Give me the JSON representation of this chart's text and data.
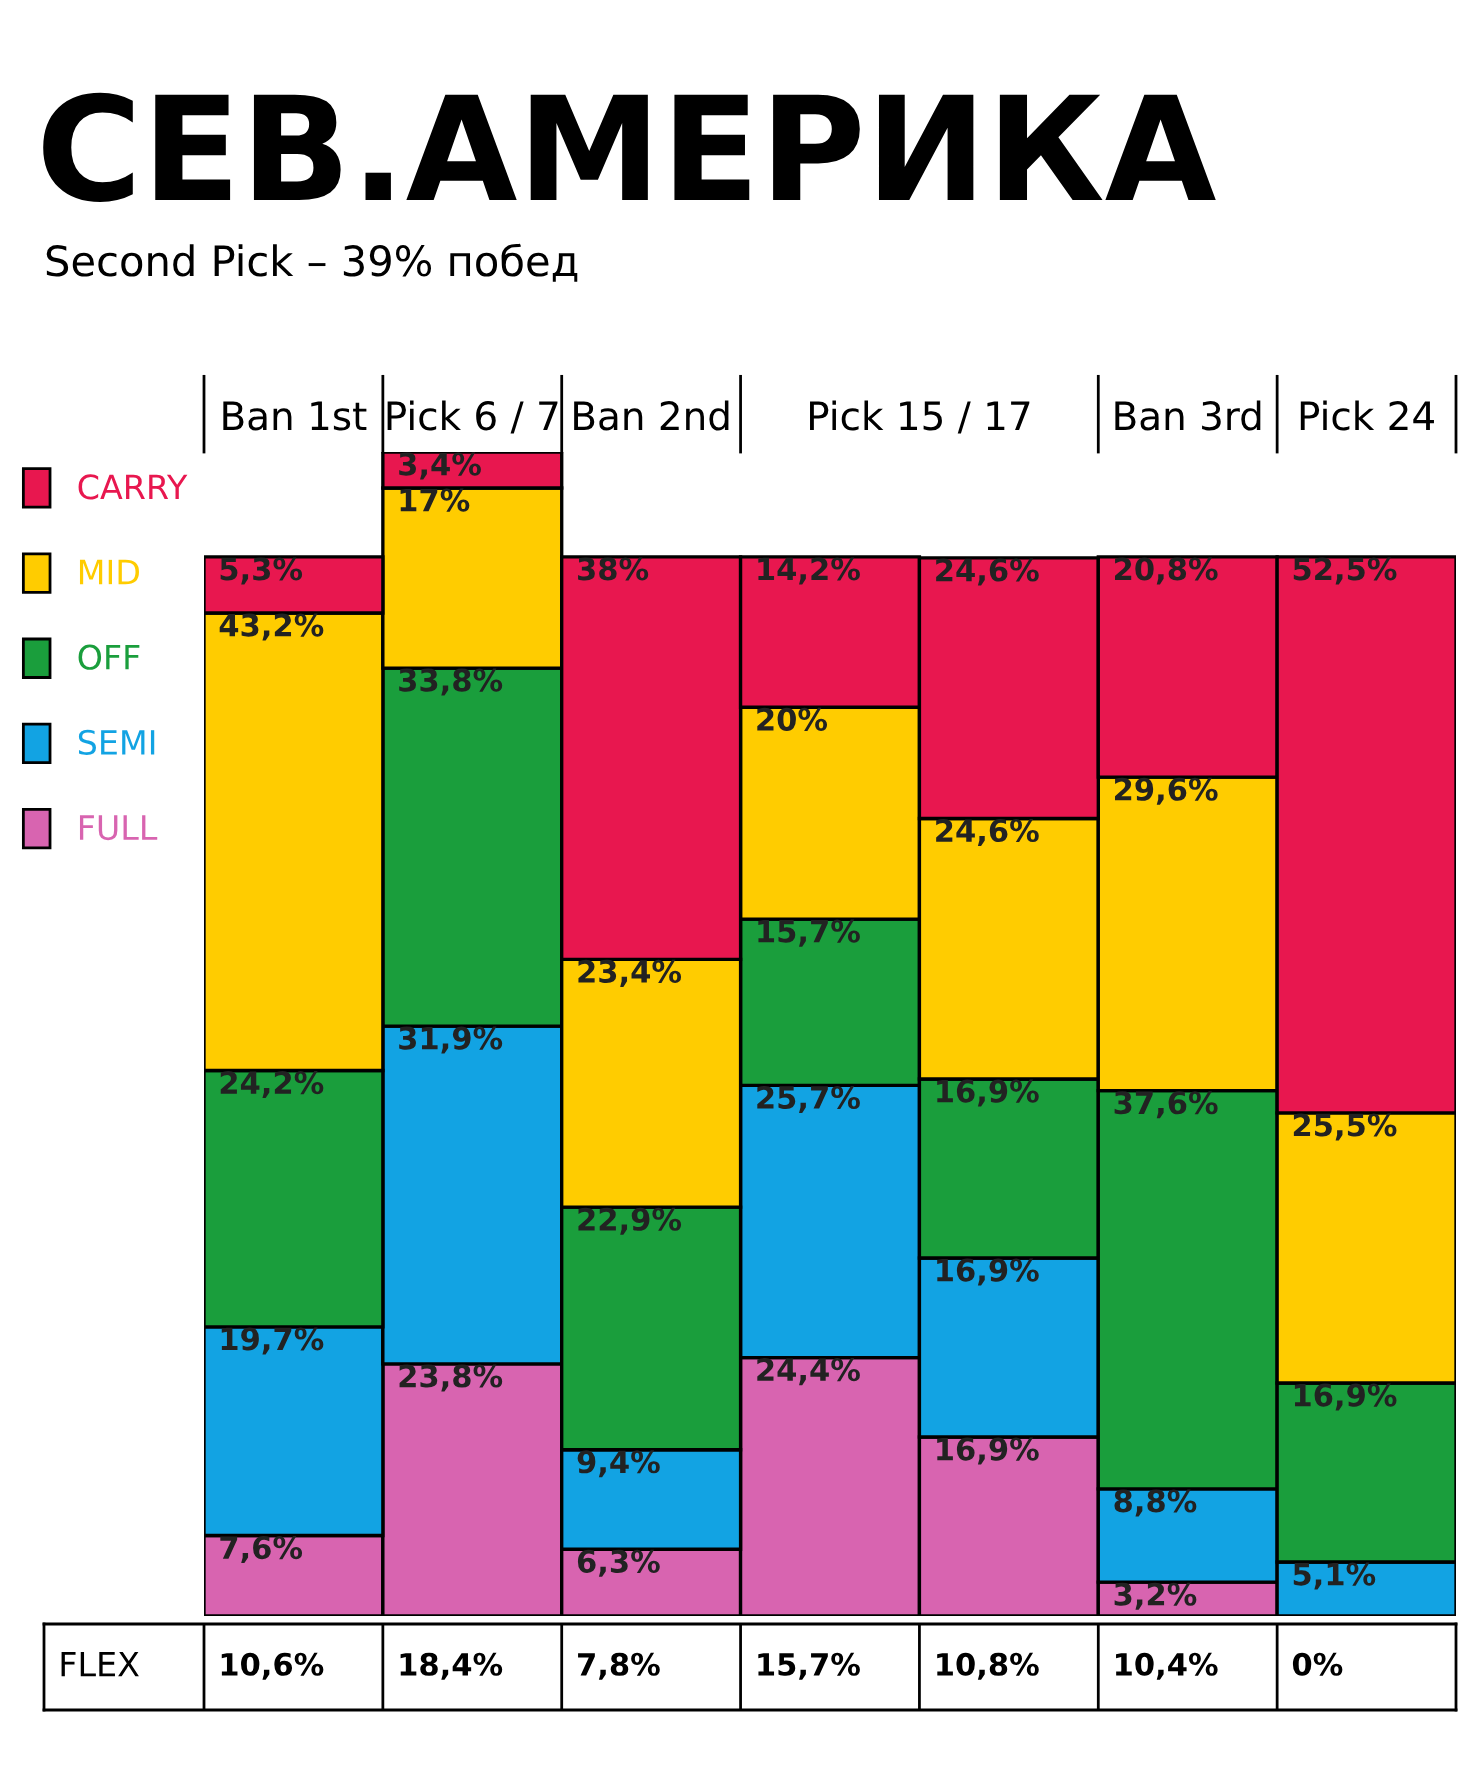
{
  "chart_data": [
    {
      "type": "bar",
      "title": "СЕВ.АМЕРИКА",
      "subtitle": "Second Pick – 39% побед",
      "categories": [
        "Ban 1st",
        "Pick 6 / 7",
        "Ban 2nd",
        "Pick 15 / 17",
        null,
        "Ban 3rd",
        "Pick 24"
      ],
      "stacked": true,
      "legend": "left",
      "series": [
        {
          "name": "FULL",
          "color": "#d864b0",
          "values": [
            7.6,
            23.8,
            6.3,
            24.4,
            16.9,
            3.2,
            0
          ],
          "value_labels": [
            "7,6%",
            "23,8%",
            "6,3%",
            "24,4%",
            "16,9%",
            "3,2%",
            null
          ]
        },
        {
          "name": "SEMI",
          "color": "#12a3e3",
          "values": [
            19.7,
            31.9,
            9.4,
            25.7,
            16.9,
            8.8,
            5.1
          ],
          "value_labels": [
            "19,7%",
            "31,9%",
            "9,4%",
            "25,7%",
            "16,9%",
            "8,8%",
            "5,1%"
          ]
        },
        {
          "name": "OFF",
          "color": "#1a9e3c",
          "values": [
            24.2,
            33.8,
            22.9,
            15.7,
            16.9,
            37.6,
            16.9
          ],
          "value_labels": [
            "24,2%",
            "33,8%",
            "22,9%",
            "15,7%",
            "16,9%",
            "37,6%",
            "16,9%"
          ]
        },
        {
          "name": "MID",
          "color": "#ffcc00",
          "values": [
            43.2,
            17,
            23.4,
            20,
            24.6,
            29.6,
            25.5
          ],
          "value_labels": [
            "43,2%",
            "17%",
            "23,4%",
            "20%",
            "24,6%",
            "29,6%",
            "25,5%"
          ]
        },
        {
          "name": "CARRY",
          "color": "#e8174f",
          "values": [
            5.3,
            3.4,
            38,
            14.2,
            24.6,
            20.8,
            52.5
          ],
          "value_labels": [
            "5,3%",
            "3,4%",
            "38%",
            "14,2%",
            "24,6%",
            "20,8%",
            "52,5%"
          ]
        }
      ]
    },
    {
      "type": "other",
      "title": "FLEX",
      "categories": [
        null,
        null,
        null,
        null,
        null,
        null,
        null
      ],
      "value_labels": [
        "10,6%",
        "18,4%",
        "7,8%",
        "15,7%",
        "10,8%",
        "10,4%",
        "0%"
      ]
    }
  ]
}
